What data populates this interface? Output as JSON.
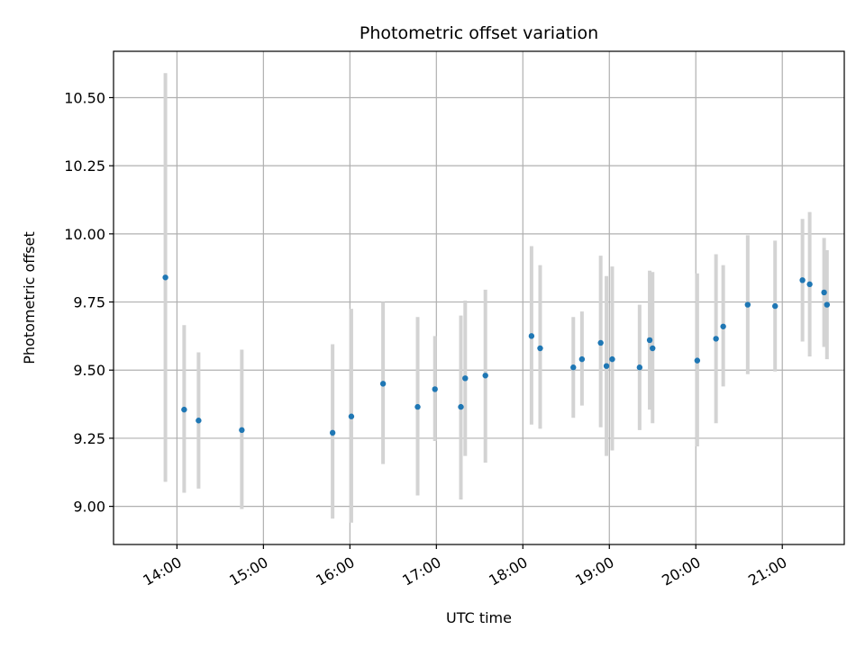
{
  "chart_data": {
    "type": "scatter",
    "title": "Photometric offset variation",
    "xlabel": "UTC time",
    "ylabel": "Photometric offset",
    "xlim": [
      "13:16",
      "21:43"
    ],
    "ylim": [
      8.86,
      10.67
    ],
    "grid": true,
    "x_ticks": [
      "14:00",
      "15:00",
      "16:00",
      "17:00",
      "18:00",
      "19:00",
      "20:00",
      "21:00"
    ],
    "y_ticks": [
      "9.00",
      "9.25",
      "9.50",
      "9.75",
      "10.00",
      "10.25",
      "10.50"
    ],
    "series": [
      {
        "color": "#1f77b4",
        "errorbar_color": "#d3d3d3",
        "points": [
          {
            "x": "13:52",
            "y": 9.84,
            "ylow": 9.09,
            "yhigh": 10.59
          },
          {
            "x": "14:05",
            "y": 9.355,
            "ylow": 9.05,
            "yhigh": 9.665
          },
          {
            "x": "14:15",
            "y": 9.315,
            "ylow": 9.065,
            "yhigh": 9.565
          },
          {
            "x": "14:45",
            "y": 9.28,
            "ylow": 8.99,
            "yhigh": 9.575
          },
          {
            "x": "15:48",
            "y": 9.27,
            "ylow": 8.955,
            "yhigh": 9.595
          },
          {
            "x": "16:01",
            "y": 9.33,
            "ylow": 8.94,
            "yhigh": 9.725
          },
          {
            "x": "16:23",
            "y": 9.45,
            "ylow": 9.155,
            "yhigh": 9.75
          },
          {
            "x": "16:47",
            "y": 9.365,
            "ylow": 9.04,
            "yhigh": 9.695
          },
          {
            "x": "16:59",
            "y": 9.43,
            "ylow": 9.24,
            "yhigh": 9.625
          },
          {
            "x": "17:17",
            "y": 9.365,
            "ylow": 9.025,
            "yhigh": 9.7
          },
          {
            "x": "17:20",
            "y": 9.47,
            "ylow": 9.185,
            "yhigh": 9.755
          },
          {
            "x": "17:34",
            "y": 9.48,
            "ylow": 9.16,
            "yhigh": 9.795
          },
          {
            "x": "18:06",
            "y": 9.625,
            "ylow": 9.3,
            "yhigh": 9.955
          },
          {
            "x": "18:12",
            "y": 9.58,
            "ylow": 9.285,
            "yhigh": 9.885
          },
          {
            "x": "18:35",
            "y": 9.51,
            "ylow": 9.325,
            "yhigh": 9.695
          },
          {
            "x": "18:41",
            "y": 9.54,
            "ylow": 9.37,
            "yhigh": 9.715
          },
          {
            "x": "18:54",
            "y": 9.6,
            "ylow": 9.29,
            "yhigh": 9.92
          },
          {
            "x": "18:58",
            "y": 9.515,
            "ylow": 9.185,
            "yhigh": 9.845
          },
          {
            "x": "19:02",
            "y": 9.54,
            "ylow": 9.205,
            "yhigh": 9.88
          },
          {
            "x": "19:21",
            "y": 9.51,
            "ylow": 9.28,
            "yhigh": 9.74
          },
          {
            "x": "19:28",
            "y": 9.61,
            "ylow": 9.355,
            "yhigh": 9.865
          },
          {
            "x": "19:30",
            "y": 9.58,
            "ylow": 9.305,
            "yhigh": 9.86
          },
          {
            "x": "20:01",
            "y": 9.535,
            "ylow": 9.22,
            "yhigh": 9.855
          },
          {
            "x": "20:14",
            "y": 9.615,
            "ylow": 9.305,
            "yhigh": 9.925
          },
          {
            "x": "20:19",
            "y": 9.66,
            "ylow": 9.44,
            "yhigh": 9.885
          },
          {
            "x": "20:36",
            "y": 9.74,
            "ylow": 9.485,
            "yhigh": 9.995
          },
          {
            "x": "20:55",
            "y": 9.735,
            "ylow": 9.495,
            "yhigh": 9.975
          },
          {
            "x": "21:14",
            "y": 9.83,
            "ylow": 9.605,
            "yhigh": 10.055
          },
          {
            "x": "21:19",
            "y": 9.815,
            "ylow": 9.55,
            "yhigh": 10.08
          },
          {
            "x": "21:29",
            "y": 9.785,
            "ylow": 9.585,
            "yhigh": 9.985
          },
          {
            "x": "21:31",
            "y": 9.74,
            "ylow": 9.54,
            "yhigh": 9.94
          }
        ]
      }
    ]
  }
}
